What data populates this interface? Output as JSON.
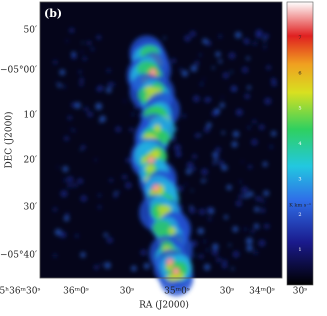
{
  "panel_label": "(b)",
  "x_axis": {
    "label": "RA (J2000)",
    "ticks": [
      "5ʰ36ᵐ30ˢ",
      "36ᵐ0ˢ",
      "30ˢ",
      "35ᵐ0ˢ",
      "30ˢ",
      "34ᵐ0ˢ",
      "30ˢ"
    ]
  },
  "y_axis": {
    "label": "DEC (J2000)",
    "ticks": [
      "50′",
      "−05°00′",
      "10′",
      "20′",
      "30′",
      "−05°40′"
    ]
  },
  "colorbar": {
    "unit": "K km s⁻¹",
    "ticks": [
      7,
      6,
      5,
      4,
      3,
      2,
      1
    ]
  }
}
